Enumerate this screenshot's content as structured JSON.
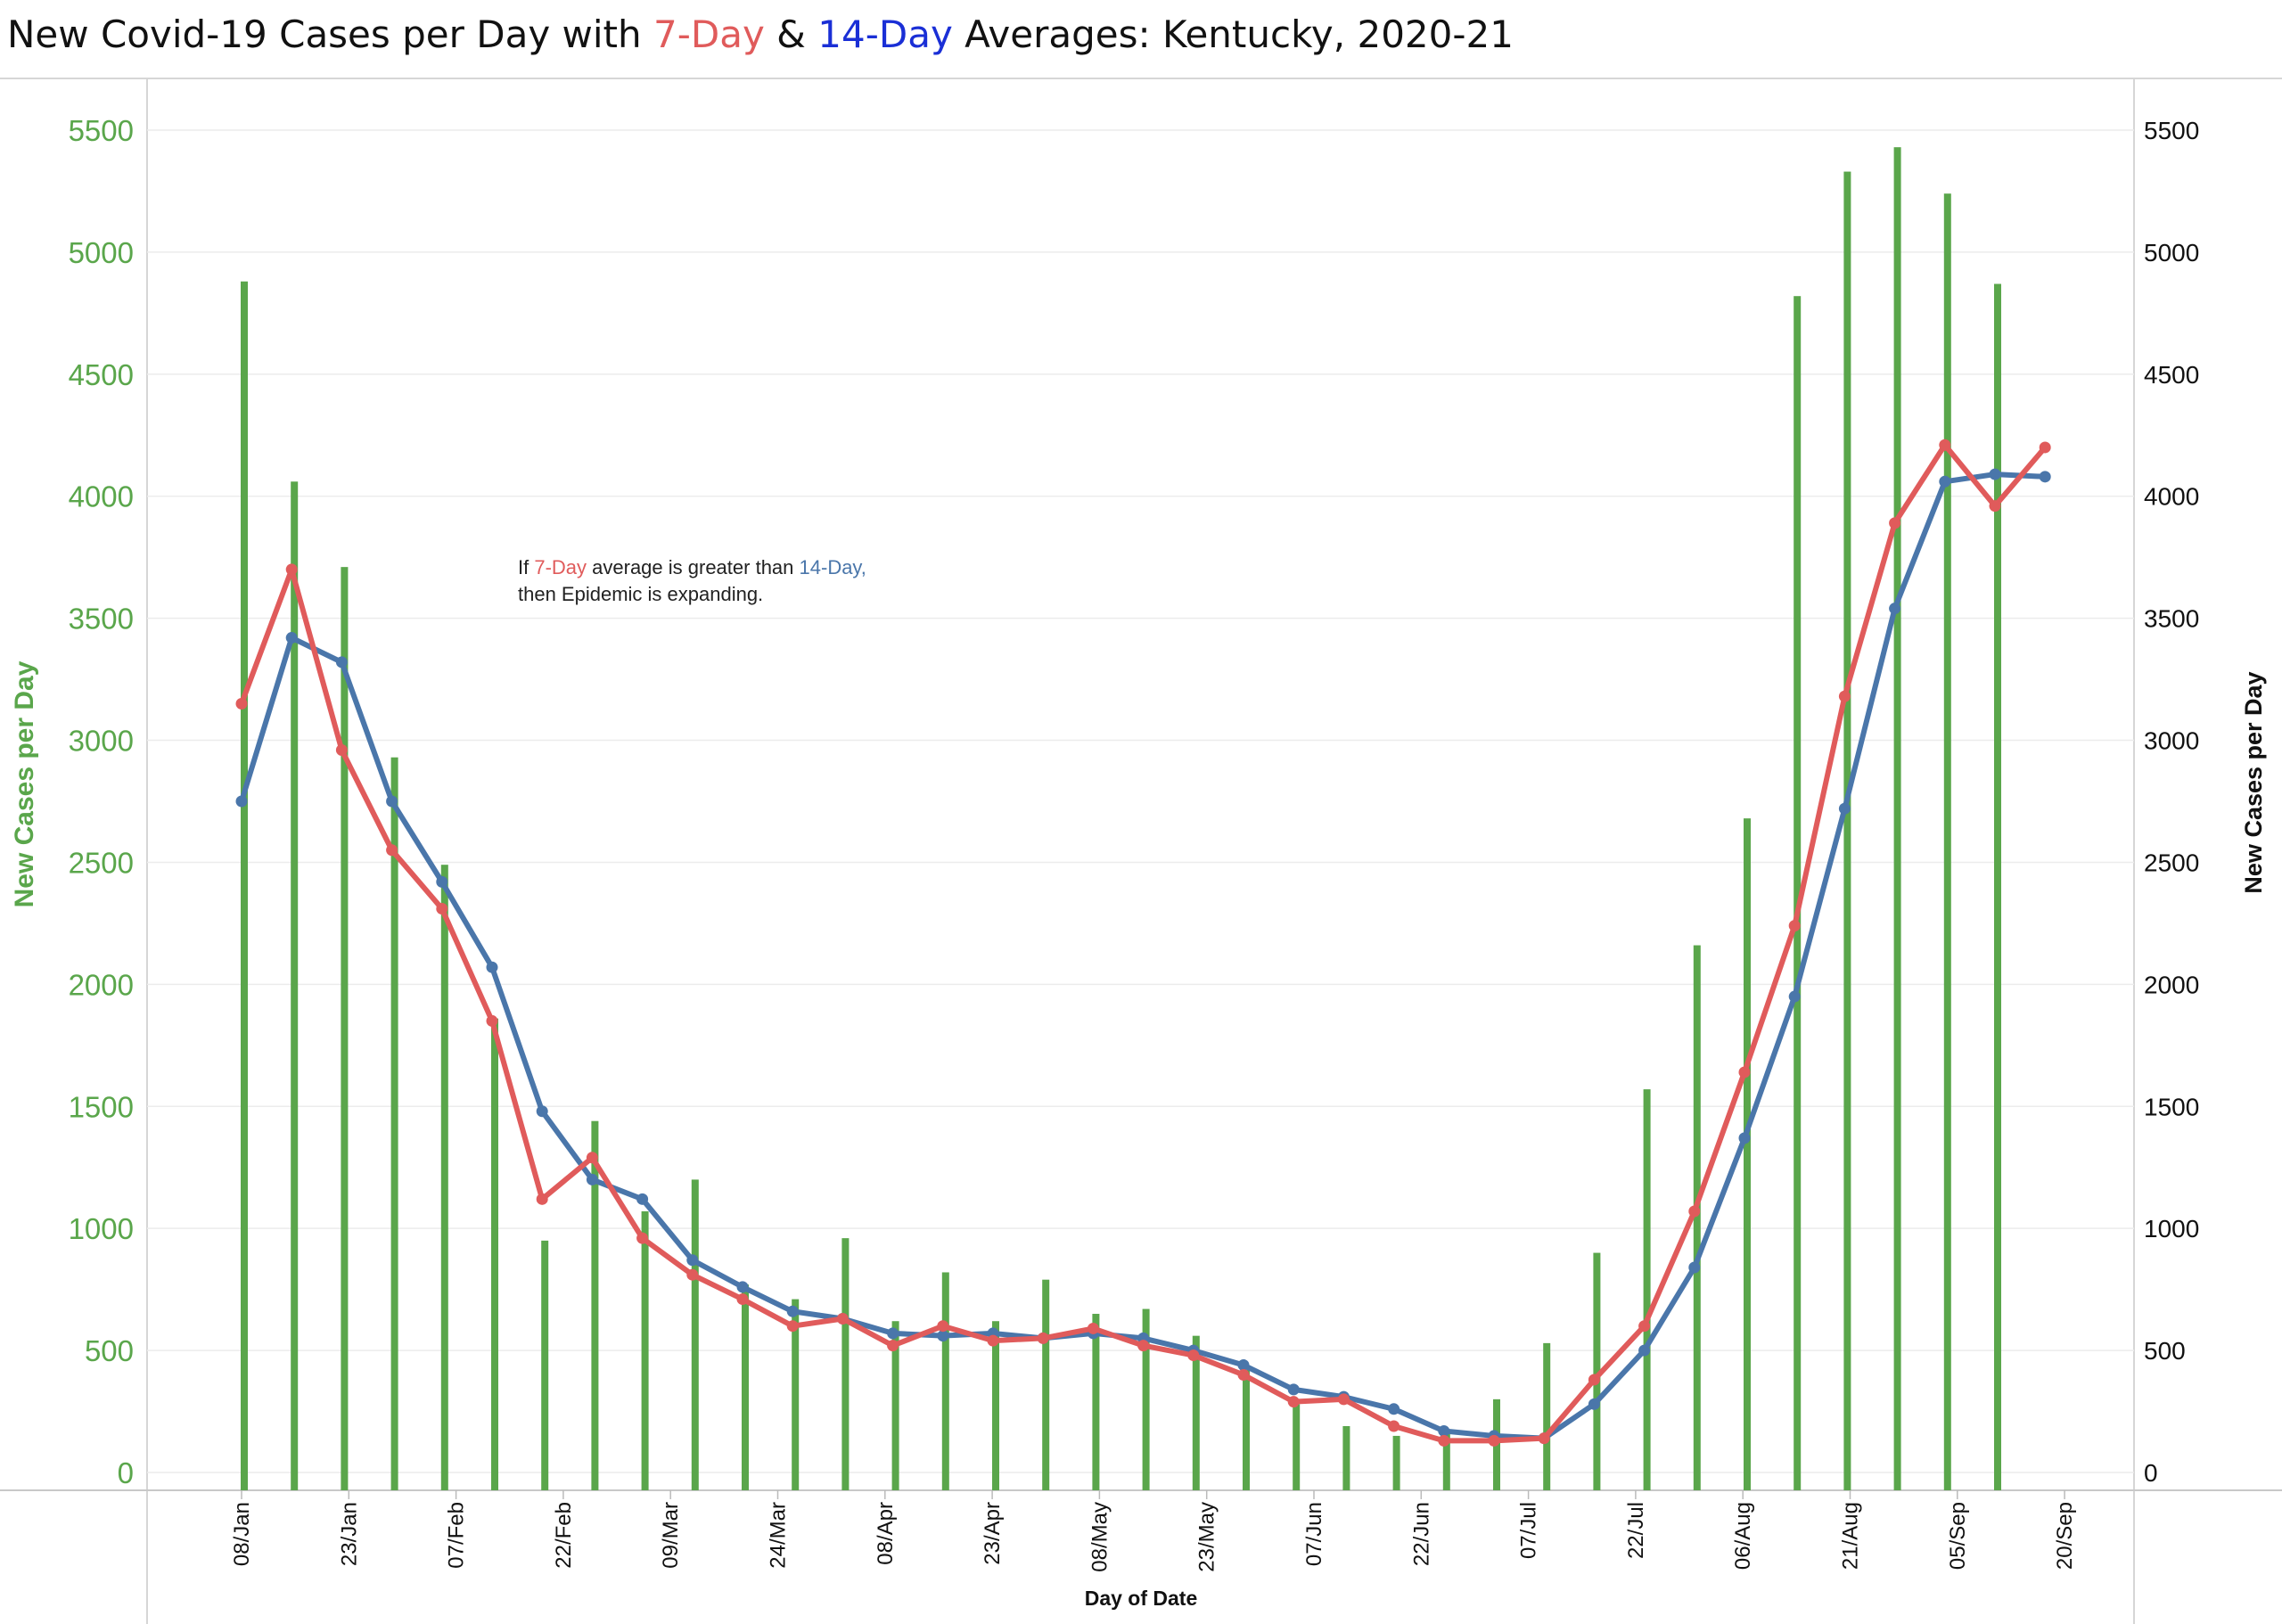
{
  "title": {
    "part1": "New Covid-19 Cases per Day with ",
    "seven_day": "7-Day",
    "amp": " & ",
    "fourteen_day": "14-Day",
    "part2": " Averages: Kentucky,  2020-21"
  },
  "colors": {
    "bars": "#5aa64b",
    "seven_day": "#e05b5b",
    "fourteen_day": "#4a76aa",
    "title_fourteen": "#1a2fd6",
    "left_axis": "#5aa64b"
  },
  "annotation": {
    "line1_prefix": "If ",
    "line1_seven": "7-Day",
    "line1_mid": " average is greater than ",
    "line1_fourteen": "14-Day,",
    "line2": "then Epidemic is expanding."
  },
  "chart_data": {
    "type": "bar",
    "xlabel": "Day of Date",
    "ylabel_left": "New Cases per Day",
    "ylabel_right": "New Cases per Day",
    "ylim": [
      0,
      5500
    ],
    "y_ticks": [
      0,
      500,
      1000,
      1500,
      2000,
      2500,
      3000,
      3500,
      4000,
      4500,
      5000,
      5500
    ],
    "x_tick_labels": [
      "08/Jan",
      "23/Jan",
      "07/Feb",
      "22/Feb",
      "09/Mar",
      "24/Mar",
      "08/Apr",
      "23/Apr",
      "08/May",
      "23/May",
      "07/Jun",
      "22/Jun",
      "07/Jul",
      "22/Jul",
      "06/Aug",
      "21/Aug",
      "05/Sep",
      "20/Sep"
    ],
    "bar_series": {
      "name": "New Cases per Day",
      "values": [
        4880,
        4060,
        3710,
        2930,
        2490,
        1860,
        950,
        1440,
        1070,
        1200,
        770,
        710,
        960,
        620,
        820,
        620,
        790,
        650,
        670,
        560,
        420,
        280,
        190,
        150,
        170,
        300,
        530,
        900,
        1570,
        2160,
        2680,
        4820,
        5330,
        5430,
        5240,
        4870
      ]
    },
    "series": [
      {
        "name": "7-Day",
        "values": [
          3150,
          3700,
          2960,
          2550,
          2310,
          1850,
          1120,
          1290,
          960,
          810,
          710,
          600,
          630,
          520,
          600,
          540,
          550,
          590,
          520,
          480,
          400,
          290,
          300,
          190,
          130,
          130,
          140,
          380,
          600,
          1070,
          1640,
          2240,
          3180,
          3890,
          4210,
          3960,
          4200
        ]
      },
      {
        "name": "14-Day",
        "values": [
          2750,
          3420,
          3320,
          2750,
          2420,
          2070,
          1480,
          1200,
          1120,
          870,
          760,
          660,
          630,
          570,
          560,
          570,
          550,
          570,
          550,
          500,
          440,
          340,
          310,
          260,
          170,
          150,
          140,
          280,
          500,
          840,
          1370,
          1950,
          2720,
          3540,
          4060,
          4090,
          4080
        ]
      }
    ],
    "grid": "horizontal",
    "legend": "none"
  }
}
